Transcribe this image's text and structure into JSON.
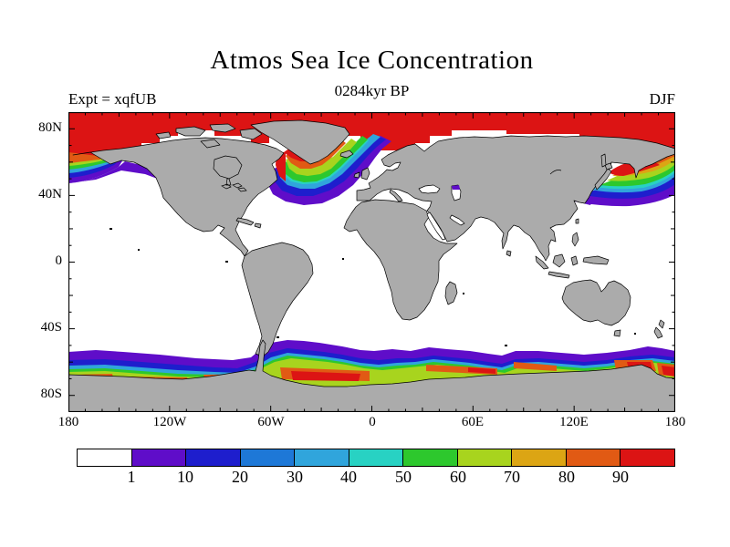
{
  "title": "Atmos Sea Ice Concentration",
  "subtitle": "0284kyr BP",
  "experiment_label": "Expt = xqfUB",
  "season_label": "DJF",
  "axes": {
    "y_labels": [
      "80N",
      "40N",
      "0",
      "40S",
      "80S"
    ],
    "x_labels": [
      "180",
      "120W",
      "60W",
      "0",
      "60E",
      "120E",
      "180"
    ]
  },
  "colorbar": {
    "labels": [
      "1",
      "10",
      "20",
      "30",
      "40",
      "50",
      "60",
      "70",
      "80",
      "90"
    ],
    "colors": [
      "#ffffff",
      "#5f0dc9",
      "#1e1ecd",
      "#1e78d7",
      "#30a5dc",
      "#28d2c3",
      "#2dc82d",
      "#a8d41e",
      "#dca514",
      "#e15a14",
      "#dc1414"
    ]
  },
  "map": {
    "land_color": "#ababab",
    "ocean_color": "#ffffff",
    "coast_color": "#000000",
    "lon_range": [
      -180,
      180
    ],
    "lat_range": [
      -90,
      90
    ]
  },
  "chart_data": {
    "type": "heatmap",
    "title": "Atmos Sea Ice Concentration",
    "subtitle": "0284kyr BP",
    "experiment": "xqfUB",
    "season": "DJF",
    "projection": "equirectangular world map, 180W-180E, 90N-90S",
    "xlabel_ticks": [
      "180",
      "120W",
      "60W",
      "0",
      "60E",
      "120E",
      "180"
    ],
    "ylabel_ticks": [
      "80N",
      "40N",
      "0",
      "40S",
      "80S"
    ],
    "legend_levels_percent": [
      1,
      10,
      20,
      30,
      40,
      50,
      60,
      70,
      80,
      90
    ],
    "legend_colors": [
      "#ffffff",
      "#5f0dc9",
      "#1e1ecd",
      "#1e78d7",
      "#30a5dc",
      "#28d2c3",
      "#2dc82d",
      "#a8d41e",
      "#dca514",
      "#e15a14",
      "#dc1414"
    ],
    "regions": [
      {
        "name": "Arctic ice cap",
        "value": ">90",
        "extent": "entire Arctic Ocean south to ~65-70N, blocky grid edge"
      },
      {
        "name": "Bering Sea ice edge",
        "value": "1-90 gradient",
        "extent": "map left edge, ~55-62N, rainbow fringe below cap"
      },
      {
        "name": "Labrador Sea / North Atlantic ice edge",
        "value": "1-90 gradient",
        "extent": "curved band from Newfoundland under Greenland tip northeast to Norway"
      },
      {
        "name": "Sea of Okhotsk / NW Pacific ice edge",
        "value": "1-90 gradient",
        "extent": "band from Sea of Okhotsk southeast past Kamchatka to map right edge ~45N"
      },
      {
        "name": "Antarctic circumpolar ice band",
        "value": "1-90+ gradient",
        "extent": "full width ~58S-70S; purple/blue outer edge, green-yellow-orange-red patches near coast, strongest in Weddell Sea sector and ~150E"
      },
      {
        "name": "Open ocean",
        "value": "<1",
        "extent": "white mid-latitude and tropical oceans"
      }
    ]
  }
}
